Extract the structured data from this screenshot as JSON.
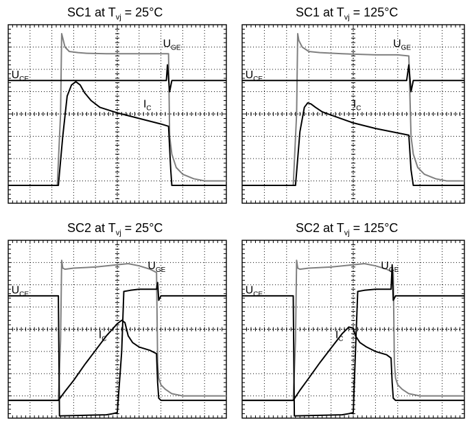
{
  "chart_data": [
    {
      "type": "line",
      "title": "SC1 at T",
      "title_sub": "vj",
      "title_suffix": " = 25°C",
      "grid": true,
      "x_divisions": 10,
      "y_divisions": 8,
      "ylim": [
        0,
        8
      ],
      "xlim": [
        0,
        10
      ],
      "labels": [
        {
          "text": "U",
          "sub": "CE",
          "x": 0.05,
          "y": 5.6
        },
        {
          "text": "U",
          "sub": "GE",
          "x": 7.0,
          "y": 7.0
        },
        {
          "text": "I",
          "sub": "C",
          "x": 6.1,
          "y": 4.3
        }
      ],
      "series": [
        {
          "color": "#7f7f7f",
          "width": 2,
          "x": [
            0,
            2.25,
            2.4,
            2.45,
            2.5,
            2.6,
            2.8,
            3.2,
            3.6,
            4.5,
            6.0,
            7.0,
            7.35,
            7.4,
            7.5,
            7.7,
            8.0,
            8.5,
            9.0,
            10
          ],
          "y": [
            0.8,
            0.8,
            4.0,
            7.6,
            7.4,
            7.0,
            6.8,
            6.75,
            6.72,
            6.7,
            6.7,
            6.7,
            6.7,
            3.0,
            2.2,
            1.6,
            1.3,
            1.1,
            1.0,
            1.0
          ]
        },
        {
          "color": "#000000",
          "width": 2,
          "x": [
            0,
            2.3,
            2.5,
            2.8,
            3.0,
            3.3,
            4.0,
            5.0,
            6.0,
            7.0,
            7.25,
            7.3,
            7.4,
            7.5,
            7.6,
            10
          ],
          "y": [
            5.5,
            5.5,
            5.5,
            5.5,
            5.5,
            5.5,
            5.5,
            5.5,
            5.5,
            5.5,
            5.5,
            6.2,
            5.0,
            5.5,
            5.5,
            5.5
          ]
        },
        {
          "color": "#000000",
          "width": 2,
          "x": [
            0,
            2.3,
            2.5,
            2.7,
            2.9,
            3.1,
            3.3,
            3.5,
            3.8,
            4.2,
            5.0,
            6.0,
            7.0,
            7.35,
            7.45,
            7.5,
            10
          ],
          "y": [
            0.8,
            0.8,
            3.0,
            4.8,
            5.3,
            5.45,
            5.3,
            4.95,
            4.6,
            4.3,
            4.05,
            3.8,
            3.55,
            3.45,
            1.5,
            0.8,
            0.8
          ]
        }
      ]
    },
    {
      "type": "line",
      "title": "SC1 at T",
      "title_sub": "vj",
      "title_suffix": " = 125°C",
      "grid": true,
      "x_divisions": 10,
      "y_divisions": 8,
      "ylim": [
        0,
        8
      ],
      "xlim": [
        0,
        10
      ],
      "labels": [
        {
          "text": "U",
          "sub": "CE",
          "x": 0.05,
          "y": 5.6
        },
        {
          "text": "U",
          "sub": "GE",
          "x": 6.7,
          "y": 7.0
        },
        {
          "text": "I",
          "sub": "C",
          "x": 4.9,
          "y": 4.3
        }
      ],
      "series": [
        {
          "color": "#7f7f7f",
          "width": 2,
          "x": [
            0,
            2.3,
            2.45,
            2.5,
            2.55,
            2.7,
            3.0,
            3.5,
            4.5,
            6.0,
            7.0,
            7.5,
            7.6,
            7.7,
            7.9,
            8.2,
            8.7,
            9.2,
            10
          ],
          "y": [
            0.8,
            0.8,
            4.0,
            7.6,
            7.3,
            7.0,
            6.8,
            6.75,
            6.7,
            6.65,
            6.65,
            6.6,
            3.0,
            2.2,
            1.6,
            1.3,
            1.1,
            1.0,
            1.0
          ]
        },
        {
          "color": "#000000",
          "width": 2,
          "x": [
            0,
            2.35,
            2.55,
            3.0,
            4.0,
            5.0,
            6.0,
            7.0,
            7.4,
            7.5,
            7.6,
            7.7,
            10
          ],
          "y": [
            5.5,
            5.5,
            5.5,
            5.5,
            5.5,
            5.5,
            5.5,
            5.5,
            5.5,
            6.2,
            5.0,
            5.5,
            5.5
          ]
        },
        {
          "color": "#000000",
          "width": 2,
          "x": [
            0,
            2.4,
            2.6,
            2.8,
            2.95,
            3.1,
            3.3,
            3.6,
            4.0,
            5.0,
            6.0,
            7.0,
            7.5,
            7.6,
            7.7,
            10
          ],
          "y": [
            0.8,
            0.8,
            3.2,
            4.3,
            4.5,
            4.45,
            4.3,
            4.1,
            3.95,
            3.6,
            3.35,
            3.15,
            3.05,
            1.5,
            0.8,
            0.8
          ]
        }
      ]
    },
    {
      "type": "line",
      "title": "SC2 at T",
      "title_sub": "vj",
      "title_suffix": " = 25°C",
      "grid": true,
      "x_divisions": 10,
      "y_divisions": 8,
      "ylim": [
        0,
        8
      ],
      "xlim": [
        0,
        10
      ],
      "labels": [
        {
          "text": "U",
          "sub": "CE",
          "x": 0.05,
          "y": 5.6
        },
        {
          "text": "U",
          "sub": "GE",
          "x": 6.3,
          "y": 6.7
        },
        {
          "text": "I",
          "sub": "C",
          "x": 4.05,
          "y": 3.6
        }
      ],
      "series": [
        {
          "color": "#7f7f7f",
          "width": 2,
          "x": [
            0,
            2.3,
            2.4,
            2.45,
            2.5,
            2.6,
            3.0,
            4.0,
            5.0,
            5.5,
            6.0,
            6.5,
            6.8,
            6.85,
            6.9,
            7.0,
            7.2,
            7.5,
            8.0,
            10
          ],
          "y": [
            0.8,
            0.8,
            3.5,
            7.1,
            6.75,
            6.7,
            6.75,
            6.8,
            6.9,
            6.95,
            6.85,
            6.7,
            6.55,
            2.5,
            1.8,
            1.5,
            1.3,
            1.1,
            1.0,
            1.0
          ]
        },
        {
          "color": "#000000",
          "width": 2,
          "x": [
            0,
            2.3,
            2.35,
            4.5,
            4.8,
            5.0,
            5.2,
            5.3,
            5.6,
            6.0,
            6.5,
            6.8,
            6.85,
            6.9,
            7.0,
            10
          ],
          "y": [
            5.5,
            5.5,
            0.1,
            0.15,
            0.2,
            0.25,
            3.0,
            5.7,
            5.75,
            5.8,
            5.8,
            5.8,
            6.1,
            5.3,
            5.5,
            5.5
          ]
        },
        {
          "color": "#000000",
          "width": 2,
          "x": [
            0,
            2.3,
            2.6,
            3.0,
            3.5,
            4.0,
            4.5,
            5.0,
            5.2,
            5.35,
            5.5,
            5.7,
            6.0,
            6.5,
            6.8,
            6.85,
            6.9,
            7.0,
            10
          ],
          "y": [
            0.8,
            0.8,
            1.2,
            1.7,
            2.4,
            3.05,
            3.7,
            4.25,
            4.4,
            4.3,
            3.7,
            3.4,
            3.2,
            3.05,
            2.9,
            1.6,
            0.9,
            0.8,
            0.8
          ]
        }
      ]
    },
    {
      "type": "line",
      "title": "SC2 at T",
      "title_sub": "vj",
      "title_suffix": " = 125°C",
      "grid": true,
      "x_divisions": 10,
      "y_divisions": 8,
      "ylim": [
        0,
        8
      ],
      "xlim": [
        0,
        10
      ],
      "labels": [
        {
          "text": "U",
          "sub": "CE",
          "x": 0.05,
          "y": 5.6
        },
        {
          "text": "U",
          "sub": "GE",
          "x": 6.15,
          "y": 6.7
        },
        {
          "text": "I",
          "sub": "C",
          "x": 4.1,
          "y": 3.6
        }
      ],
      "series": [
        {
          "color": "#7f7f7f",
          "width": 2,
          "x": [
            0,
            2.3,
            2.4,
            2.45,
            2.5,
            2.6,
            3.0,
            4.0,
            5.0,
            5.5,
            6.0,
            6.5,
            6.8,
            6.85,
            6.9,
            7.0,
            7.2,
            7.5,
            8.0,
            10
          ],
          "y": [
            0.8,
            0.8,
            3.5,
            7.1,
            6.75,
            6.7,
            6.75,
            6.8,
            6.9,
            6.95,
            6.85,
            6.7,
            6.55,
            2.5,
            1.8,
            1.5,
            1.3,
            1.1,
            1.0,
            1.0
          ]
        },
        {
          "color": "#000000",
          "width": 2,
          "x": [
            0,
            2.3,
            2.35,
            4.5,
            4.8,
            5.0,
            5.1,
            5.2,
            5.5,
            6.0,
            6.5,
            6.7,
            6.75,
            6.8,
            6.9,
            10
          ],
          "y": [
            5.5,
            5.5,
            0.1,
            0.15,
            0.2,
            0.25,
            3.0,
            5.7,
            5.75,
            5.8,
            5.8,
            5.8,
            6.9,
            5.3,
            5.5,
            5.5
          ]
        },
        {
          "color": "#000000",
          "width": 2,
          "x": [
            0,
            2.3,
            2.6,
            3.0,
            3.5,
            4.0,
            4.5,
            4.8,
            5.0,
            5.1,
            5.3,
            5.6,
            6.0,
            6.5,
            6.7,
            6.75,
            6.8,
            6.9,
            10
          ],
          "y": [
            0.8,
            0.8,
            1.25,
            1.8,
            2.5,
            3.15,
            3.8,
            4.1,
            4.05,
            3.7,
            3.4,
            3.2,
            3.0,
            2.85,
            2.7,
            1.6,
            0.9,
            0.8,
            0.8
          ]
        }
      ]
    }
  ]
}
